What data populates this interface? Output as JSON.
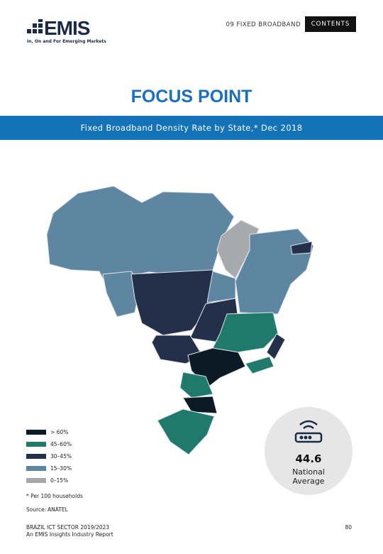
{
  "header": {
    "logo_name": "EMIS",
    "logo_tagline": "In, On and For Emerging Markets",
    "section": "09 FIXED BROADBAND",
    "contents": "CONTENTS"
  },
  "title": "FOCUS POINT",
  "subtitle": "Fixed Broadband Density Rate by State,* Dec 2018",
  "legend": [
    {
      "label": "> 60%",
      "color": "#0b1a24"
    },
    {
      "label": "45–60%",
      "color": "#1f7a6b"
    },
    {
      "label": "30–45%",
      "color": "#243049"
    },
    {
      "label": "15–30%",
      "color": "#5f86a1"
    },
    {
      "label": "0–15%",
      "color": "#a7a9ac"
    }
  ],
  "highlight": {
    "value": "44.6",
    "label": "National Average"
  },
  "note": "* Per 100 households",
  "source": {
    "label": "Source:",
    "value": "ANATEL"
  },
  "footer": {
    "report": "BRAZIL ICT SECTOR 2019/2023",
    "subtitle": "An EMIS Insights Industry Report",
    "page": "80"
  }
}
